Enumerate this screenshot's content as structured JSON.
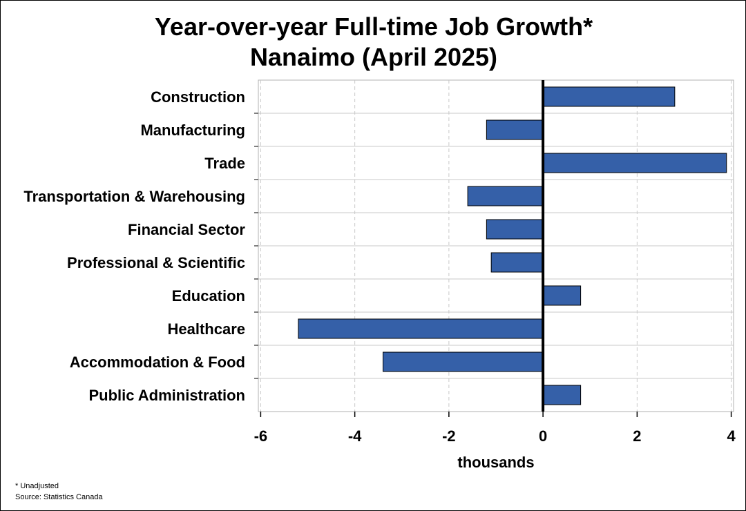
{
  "footnotes": {
    "unadjusted": "* Unadjusted",
    "source": "Source: Statistics Canada"
  },
  "colors": {
    "bar_fill": "#3560a8",
    "bar_stroke": "#000000",
    "zero_line": "#000000",
    "grid": "#c8c8c8"
  },
  "chart_data": {
    "type": "bar",
    "orientation": "horizontal",
    "title": "Year-over-year Full-time Job Growth*",
    "subtitle": "Nanaimo (April 2025)",
    "xlabel": "thousands",
    "ylabel": "",
    "xlim": [
      -6.05,
      4.05
    ],
    "xticks": [
      -6,
      -4,
      -2,
      0,
      2,
      4
    ],
    "grid": true,
    "categories": [
      "Construction",
      "Manufacturing",
      "Trade",
      "Transportation & Warehousing",
      "Financial Sector",
      "Professional & Scientific",
      "Education",
      "Healthcare",
      "Accommodation & Food",
      "Public Administration"
    ],
    "values": [
      2.8,
      -1.2,
      3.9,
      -1.6,
      -1.2,
      -1.1,
      0.8,
      -5.2,
      -3.4,
      0.8
    ]
  }
}
